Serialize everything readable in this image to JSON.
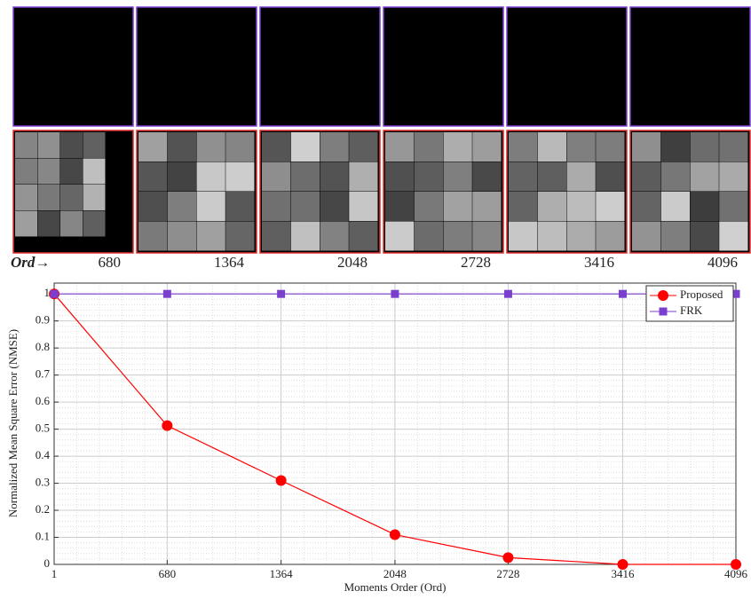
{
  "panels": {
    "label": "Ord→",
    "orders": [
      "680",
      "1364",
      "2048",
      "2728",
      "3416",
      "4096"
    ]
  },
  "chart_data": {
    "type": "line",
    "xlabel": "Moments Order (Ord)",
    "ylabel": "Normalized Mean Square Error (NMSE)",
    "x": [
      1,
      680,
      1364,
      2048,
      2728,
      3416,
      4096
    ],
    "series": [
      {
        "name": "Proposed",
        "color": "#ff0000",
        "marker": "circle",
        "values": [
          1,
          0.513,
          0.31,
          0.11,
          0.025,
          0,
          0
        ]
      },
      {
        "name": "FRK",
        "color": "#7b3fd0",
        "marker": "square",
        "values": [
          1,
          1,
          1,
          1,
          1,
          1,
          1
        ]
      }
    ],
    "xlim": [
      1,
      4096
    ],
    "xticks": [
      1,
      680,
      1364,
      2048,
      2728,
      3416,
      4096
    ],
    "ylim": [
      0,
      1.04
    ],
    "yticks": [
      0,
      0.1,
      0.2,
      0.3,
      0.4,
      0.5,
      0.6,
      0.7,
      0.8,
      0.9,
      1
    ],
    "grid": true,
    "legend": "top-right"
  }
}
